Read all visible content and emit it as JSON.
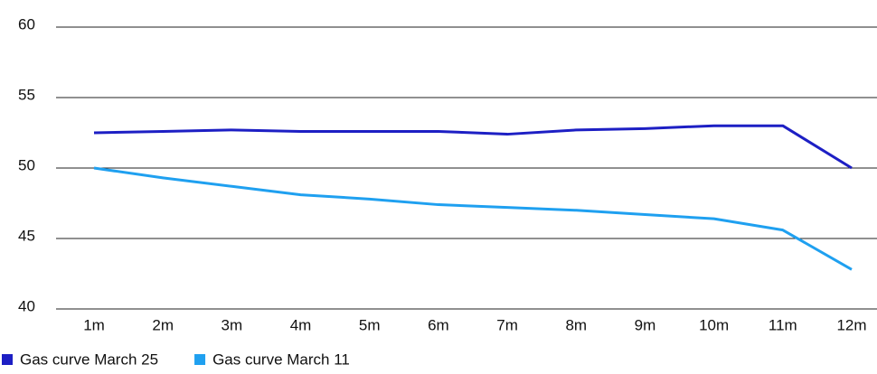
{
  "chart_data": {
    "type": "line",
    "categories": [
      "1m",
      "2m",
      "3m",
      "4m",
      "5m",
      "6m",
      "7m",
      "8m",
      "9m",
      "10m",
      "11m",
      "12m"
    ],
    "series": [
      {
        "name": "Gas curve March 25",
        "color": "#1d1fc4",
        "values": [
          52.5,
          52.6,
          52.7,
          52.6,
          52.6,
          52.6,
          52.4,
          52.7,
          52.8,
          53.0,
          53.0,
          50.0
        ]
      },
      {
        "name": "Gas curve March 11",
        "color": "#1fa0f0",
        "values": [
          50.0,
          49.3,
          48.7,
          48.1,
          47.8,
          47.4,
          47.2,
          47.0,
          46.7,
          46.4,
          45.6,
          42.8
        ]
      }
    ],
    "ylim": [
      40,
      60
    ],
    "yticks": [
      40,
      45,
      50,
      55,
      60
    ],
    "grid": true,
    "legend": "bottom-left"
  }
}
